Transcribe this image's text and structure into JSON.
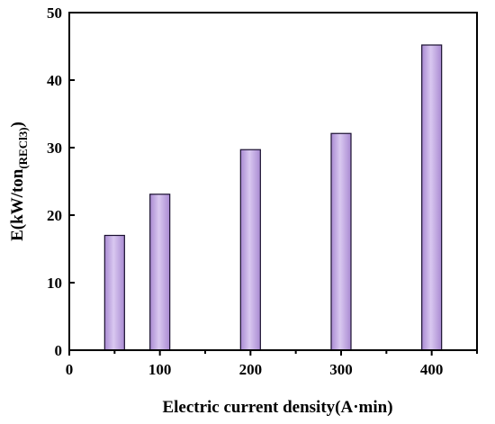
{
  "chart_data": {
    "type": "bar",
    "title": "",
    "xlabel": "Electric current density(A·min)",
    "ylabel_main": "E(kW/ton",
    "ylabel_sub": "(RECl3)",
    "ylabel_close": ")",
    "x": [
      50,
      100,
      200,
      300,
      400
    ],
    "values": [
      17.0,
      23.1,
      29.7,
      32.1,
      45.2
    ],
    "xlim": [
      0,
      450
    ],
    "ylim": [
      0,
      50
    ],
    "xticks": [
      0,
      100,
      200,
      300,
      400
    ],
    "yticks": [
      0,
      10,
      20,
      30,
      40,
      50
    ],
    "bar_color": "#a98ad2",
    "bar_highlight": "#d9c8f0",
    "bar_edge": "#1a1030",
    "grid": false,
    "legend": "none"
  }
}
